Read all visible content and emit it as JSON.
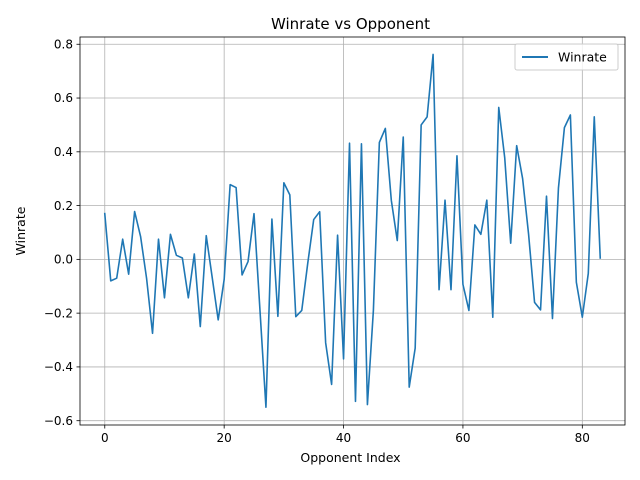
{
  "chart_data": {
    "type": "line",
    "title": "Winrate vs Opponent",
    "xlabel": "Opponent Index",
    "ylabel": "Winrate",
    "xlim": [
      -4.15,
      87.15
    ],
    "ylim": [
      -0.616,
      0.827
    ],
    "xticks": [
      0,
      20,
      40,
      60,
      80
    ],
    "xtick_labels": [
      "0",
      "20",
      "40",
      "60",
      "80"
    ],
    "yticks": [
      -0.6,
      -0.4,
      -0.2,
      0.0,
      0.2,
      0.4,
      0.6,
      0.8
    ],
    "ytick_labels": [
      "−0.6",
      "−0.4",
      "−0.2",
      "0.0",
      "0.2",
      "0.4",
      "0.6",
      "0.8"
    ],
    "grid": true,
    "legend": {
      "position": "top-right"
    },
    "series": [
      {
        "name": "Winrate",
        "color": "#1f77b4",
        "x": [
          0,
          1,
          2,
          3,
          4,
          5,
          6,
          7,
          8,
          9,
          10,
          11,
          12,
          13,
          14,
          15,
          16,
          17,
          18,
          19,
          20,
          21,
          22,
          23,
          24,
          25,
          26,
          27,
          28,
          29,
          30,
          31,
          32,
          33,
          34,
          35,
          36,
          37,
          38,
          39,
          40,
          41,
          42,
          43,
          44,
          45,
          46,
          47,
          48,
          49,
          50,
          51,
          52,
          53,
          54,
          55,
          56,
          57,
          58,
          59,
          60,
          61,
          62,
          63,
          64,
          65,
          66,
          67,
          68,
          69,
          70,
          71,
          72,
          73,
          74,
          75,
          76,
          77,
          78,
          79,
          80,
          81,
          82,
          83
        ],
        "y": [
          0.17,
          -0.08,
          -0.07,
          0.075,
          -0.055,
          0.178,
          0.085,
          -0.07,
          -0.275,
          0.075,
          -0.143,
          0.093,
          0.015,
          0.005,
          -0.143,
          0.02,
          -0.25,
          0.088,
          -0.068,
          -0.225,
          -0.075,
          0.278,
          0.267,
          -0.058,
          -0.008,
          0.17,
          -0.19,
          -0.55,
          0.15,
          -0.212,
          0.285,
          0.24,
          -0.213,
          -0.19,
          -0.015,
          0.148,
          0.177,
          -0.31,
          -0.465,
          0.09,
          -0.37,
          0.432,
          -0.528,
          0.43,
          -0.54,
          -0.19,
          0.435,
          0.487,
          0.22,
          0.07,
          0.455,
          -0.475,
          -0.33,
          0.5,
          0.53,
          0.762,
          -0.113,
          0.22,
          -0.113,
          0.385,
          -0.093,
          -0.19,
          0.128,
          0.093,
          0.22,
          -0.215,
          0.565,
          0.378,
          0.06,
          0.423,
          0.3,
          0.093,
          -0.16,
          -0.188,
          0.235,
          -0.22,
          0.265,
          0.49,
          0.537,
          -0.085,
          -0.215,
          -0.052,
          0.53,
          0.005
        ]
      }
    ]
  }
}
